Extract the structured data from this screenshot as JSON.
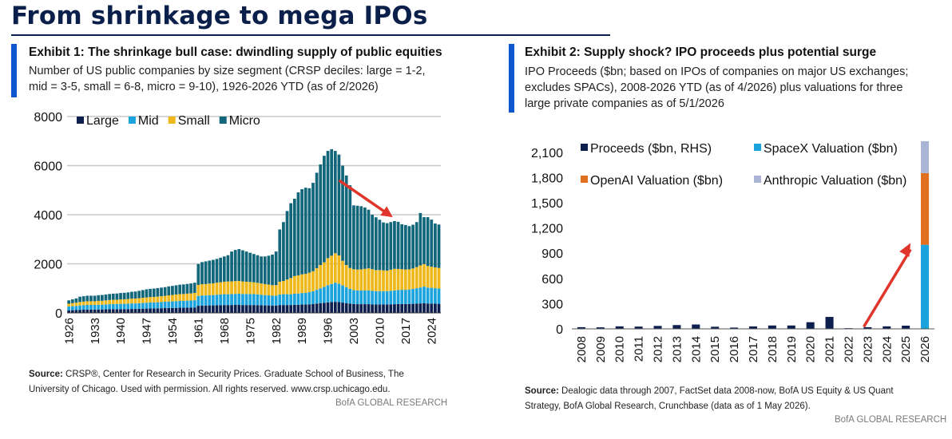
{
  "page_title": "From shrinkage to mega IPOs",
  "colors": {
    "navy": "#0a1f4a",
    "accent_blue": "#0b57d0",
    "large": "#0c1f4f",
    "mid": "#1aa3dc",
    "small": "#efb81a",
    "micro": "#12667a",
    "proceeds": "#0c1f4f",
    "spacex": "#1aa3dc",
    "openai": "#e07020",
    "anthropic": "#aab5d6",
    "arrow": "#e0352b"
  },
  "exhibit1": {
    "title": "Exhibit 1: The shrinkage bull case: dwindling supply of public equities",
    "subtitle_lines": [
      "Number of US public companies by size segment (CRSP deciles: large = 1-2,",
      "mid = 3-5, small = 6-8, micro = 9-10), 1926-2026 YTD (as of 2/2026)"
    ],
    "source_label": "Source:",
    "source_lines": [
      " CRSP®, Center for Research in Security Prices. Graduate School of Business, The",
      "University of Chicago.  Used with permission. All rights reserved. www.crsp.uchicago.edu."
    ],
    "brand": "BofA GLOBAL RESEARCH"
  },
  "exhibit2": {
    "title": "Exhibit 2: Supply shock? IPO proceeds plus potential surge",
    "subtitle_lines": [
      "IPO Proceeds ($bn; based on IPOs of companies on major US exchanges;",
      "excludes SPACs), 2008-2026 YTD (as of 4/2026) plus valuations for three",
      "large private companies as of 5/1/2026"
    ],
    "source_label": "Source:",
    "source_lines": [
      " Dealogic data through 2007, FactSet data 2008-now, BofA US Equity & US Quant",
      "Strategy, BofA Global Research, Crunchbase (data as of 1 May 2026)."
    ],
    "brand": "BofA GLOBAL RESEARCH"
  },
  "chart_data": [
    {
      "type": "bar",
      "stacked": true,
      "title": "",
      "xlabel": "",
      "ylabel": "",
      "ylim": [
        0,
        8000
      ],
      "yticks": [
        0,
        2000,
        4000,
        6000,
        8000
      ],
      "x": [
        1926,
        1927,
        1928,
        1929,
        1930,
        1931,
        1932,
        1933,
        1934,
        1935,
        1936,
        1937,
        1938,
        1939,
        1940,
        1941,
        1942,
        1943,
        1944,
        1945,
        1946,
        1947,
        1948,
        1949,
        1950,
        1951,
        1952,
        1953,
        1954,
        1955,
        1956,
        1957,
        1958,
        1959,
        1960,
        1961,
        1962,
        1963,
        1964,
        1965,
        1966,
        1967,
        1968,
        1969,
        1970,
        1971,
        1972,
        1973,
        1974,
        1975,
        1976,
        1977,
        1978,
        1979,
        1980,
        1981,
        1982,
        1983,
        1984,
        1985,
        1986,
        1987,
        1988,
        1989,
        1990,
        1991,
        1992,
        1993,
        1994,
        1995,
        1996,
        1997,
        1998,
        1999,
        2000,
        2001,
        2002,
        2003,
        2004,
        2005,
        2006,
        2007,
        2008,
        2009,
        2010,
        2011,
        2012,
        2013,
        2014,
        2015,
        2016,
        2017,
        2018,
        2019,
        2020,
        2021,
        2022,
        2023,
        2024,
        2025,
        2026
      ],
      "xtick_labels": [
        "1926",
        "1933",
        "1940",
        "1947",
        "1954",
        "1961",
        "1968",
        "1975",
        "1982",
        "1989",
        "1996",
        "2003",
        "2010",
        "2017",
        "2024"
      ],
      "legend_position": "top-left",
      "grid": "horizontal",
      "series": [
        {
          "name": "Large",
          "color": "#0c1f4f",
          "values": [
            105,
            110,
            115,
            125,
            130,
            135,
            135,
            135,
            140,
            140,
            145,
            150,
            150,
            150,
            155,
            155,
            155,
            160,
            160,
            165,
            170,
            175,
            180,
            180,
            185,
            190,
            195,
            200,
            200,
            205,
            210,
            210,
            215,
            215,
            220,
            290,
            300,
            300,
            305,
            305,
            310,
            315,
            320,
            320,
            320,
            325,
            325,
            320,
            320,
            320,
            320,
            315,
            310,
            305,
            305,
            300,
            300,
            320,
            320,
            320,
            320,
            330,
            330,
            340,
            340,
            350,
            360,
            380,
            400,
            410,
            430,
            440,
            450,
            440,
            420,
            400,
            380,
            360,
            355,
            355,
            355,
            355,
            350,
            345,
            345,
            345,
            345,
            350,
            355,
            360,
            360,
            360,
            365,
            370,
            375,
            385,
            390,
            380,
            380,
            375,
            370
          ]
        },
        {
          "name": "Mid",
          "color": "#1aa3dc",
          "values": [
            160,
            165,
            170,
            180,
            185,
            190,
            190,
            190,
            195,
            195,
            200,
            205,
            210,
            210,
            215,
            215,
            220,
            225,
            225,
            230,
            235,
            240,
            245,
            245,
            250,
            255,
            260,
            265,
            270,
            275,
            280,
            280,
            285,
            290,
            295,
            400,
            410,
            410,
            420,
            420,
            430,
            435,
            440,
            440,
            445,
            450,
            455,
            450,
            450,
            450,
            445,
            440,
            430,
            420,
            410,
            400,
            400,
            430,
            440,
            440,
            440,
            450,
            460,
            470,
            480,
            500,
            520,
            560,
            600,
            650,
            700,
            740,
            780,
            750,
            700,
            650,
            600,
            570,
            560,
            560,
            560,
            560,
            550,
            540,
            540,
            540,
            540,
            550,
            560,
            570,
            580,
            580,
            590,
            610,
            630,
            650,
            680,
            650,
            640,
            630,
            620
          ]
        },
        {
          "name": "Small",
          "color": "#efb81a",
          "values": [
            110,
            120,
            130,
            140,
            145,
            150,
            150,
            150,
            155,
            160,
            165,
            170,
            175,
            175,
            180,
            185,
            190,
            195,
            200,
            205,
            210,
            215,
            220,
            225,
            230,
            235,
            240,
            250,
            260,
            270,
            275,
            280,
            285,
            290,
            300,
            450,
            460,
            465,
            470,
            480,
            490,
            500,
            510,
            520,
            520,
            520,
            520,
            510,
            500,
            490,
            480,
            470,
            460,
            450,
            440,
            430,
            430,
            520,
            540,
            600,
            660,
            720,
            740,
            760,
            770,
            790,
            820,
            880,
            950,
            1000,
            1100,
            1150,
            1200,
            1150,
            1000,
            900,
            850,
            850,
            850,
            860,
            880,
            900,
            880,
            860,
            860,
            850,
            840,
            860,
            880,
            860,
            840,
            830,
            820,
            830,
            860,
            900,
            920,
            880,
            860,
            850,
            840
          ]
        },
        {
          "name": "Micro",
          "color": "#12667a",
          "values": [
            135,
            155,
            175,
            215,
            220,
            225,
            225,
            225,
            230,
            235,
            240,
            245,
            250,
            255,
            260,
            265,
            270,
            280,
            285,
            300,
            315,
            330,
            335,
            340,
            345,
            350,
            355,
            365,
            370,
            375,
            385,
            390,
            395,
            405,
            415,
            850,
            900,
            925,
            935,
            955,
            970,
            1000,
            1030,
            1070,
            1215,
            1270,
            1300,
            1270,
            1230,
            1190,
            1155,
            1125,
            1100,
            1125,
            1175,
            1245,
            1370,
            2130,
            2400,
            2790,
            3050,
            3150,
            3380,
            3470,
            3510,
            3440,
            3600,
            3890,
            4100,
            4340,
            4370,
            4340,
            4170,
            4110,
            3880,
            3650,
            3370,
            2600,
            2600,
            2570,
            2500,
            2390,
            2220,
            2150,
            2050,
            1950,
            1930,
            1940,
            1945,
            1920,
            1830,
            1810,
            1760,
            1780,
            1835,
            2135,
            1910,
            1990,
            1920,
            1785,
            1770
          ]
        }
      ]
    },
    {
      "type": "bar",
      "title": "",
      "xlabel": "",
      "ylabel": "",
      "ylim": [
        0,
        2250
      ],
      "yticks": [
        0,
        300,
        600,
        900,
        1200,
        1500,
        1800,
        2100
      ],
      "ytick_labels": [
        "0",
        "300",
        "600",
        "900",
        "1,200",
        "1,500",
        "1,800",
        "2,100"
      ],
      "categories": [
        "2008",
        "2009",
        "2010",
        "2011",
        "2012",
        "2013",
        "2014",
        "2015",
        "2016",
        "2017",
        "2018",
        "2019",
        "2020",
        "2021",
        "2022",
        "2023",
        "2024",
        "2025",
        "2026"
      ],
      "legend_position": "top",
      "series": [
        {
          "name": "Proceeds ($bn, RHS)",
          "color": "#0c1f4f",
          "values": [
            20,
            18,
            30,
            27,
            35,
            45,
            52,
            25,
            15,
            29,
            40,
            40,
            79,
            142,
            8,
            20,
            30,
            38,
            null
          ]
        },
        {
          "name": "SpaceX Valuation ($bn)",
          "color": "#1aa3dc",
          "values": [
            null,
            null,
            null,
            null,
            null,
            null,
            null,
            null,
            null,
            null,
            null,
            null,
            null,
            null,
            null,
            null,
            null,
            null,
            1000
          ]
        },
        {
          "name": "OpenAI Valuation ($bn)",
          "color": "#e07020",
          "values": [
            null,
            null,
            null,
            null,
            null,
            null,
            null,
            null,
            null,
            null,
            null,
            null,
            null,
            null,
            null,
            null,
            null,
            null,
            852
          ]
        },
        {
          "name": "Anthropic Valuation ($bn)",
          "color": "#aab5d6",
          "values": [
            null,
            null,
            null,
            null,
            null,
            null,
            null,
            null,
            null,
            null,
            null,
            null,
            null,
            null,
            null,
            null,
            null,
            null,
            380
          ]
        }
      ]
    }
  ]
}
